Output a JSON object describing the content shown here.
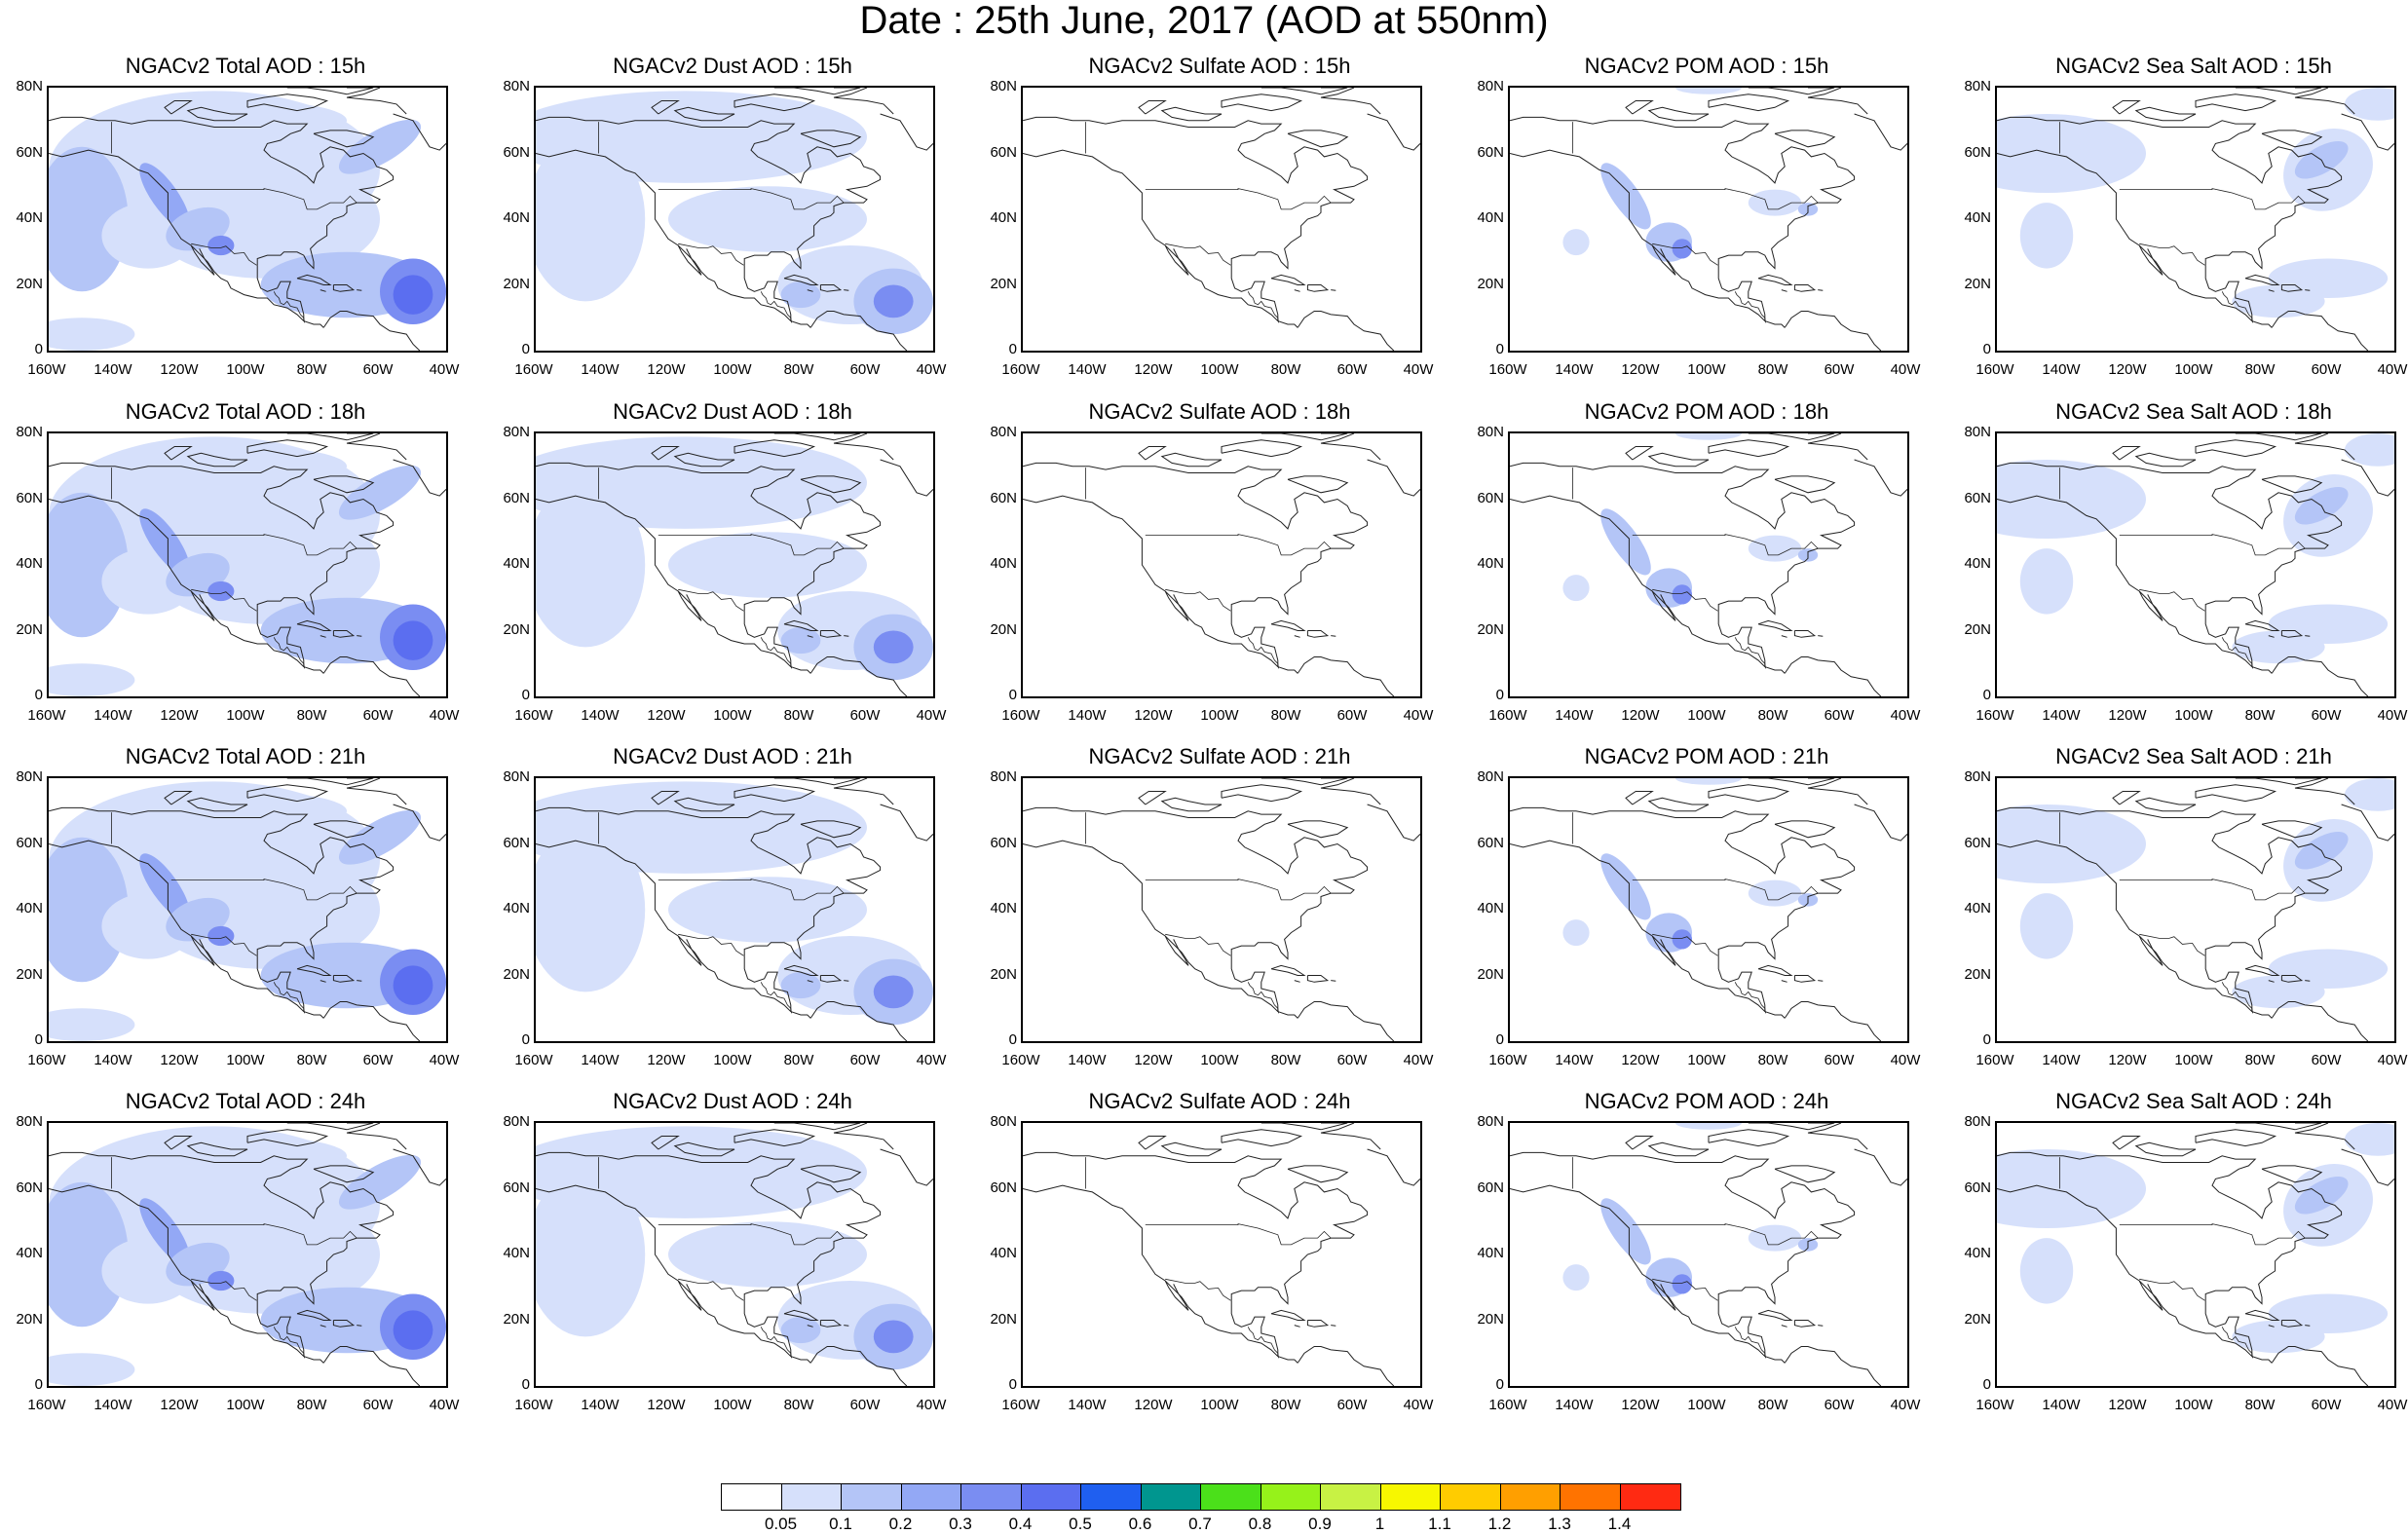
{
  "title": "Date : 25th June, 2017 (AOD at 550nm)",
  "y_ticks": [
    "80N",
    "60N",
    "40N",
    "20N",
    "0"
  ],
  "x_ticks": [
    "160W",
    "140W",
    "120W",
    "100W",
    "80W",
    "60W",
    "40W"
  ],
  "panels": [
    {
      "title": "NGACv2 Total AOD : 15h",
      "variable": "total",
      "hour": 15
    },
    {
      "title": "NGACv2 Dust AOD : 15h",
      "variable": "dust",
      "hour": 15
    },
    {
      "title": "NGACv2 Sulfate AOD : 15h",
      "variable": "sulfate",
      "hour": 15
    },
    {
      "title": "NGACv2 POM AOD : 15h",
      "variable": "pom",
      "hour": 15
    },
    {
      "title": "NGACv2 Sea Salt AOD : 15h",
      "variable": "seasalt",
      "hour": 15
    },
    {
      "title": "NGACv2 Total AOD : 18h",
      "variable": "total",
      "hour": 18
    },
    {
      "title": "NGACv2 Dust AOD : 18h",
      "variable": "dust",
      "hour": 18
    },
    {
      "title": "NGACv2 Sulfate AOD : 18h",
      "variable": "sulfate",
      "hour": 18
    },
    {
      "title": "NGACv2 POM AOD : 18h",
      "variable": "pom",
      "hour": 18
    },
    {
      "title": "NGACv2 Sea Salt AOD : 18h",
      "variable": "seasalt",
      "hour": 18
    },
    {
      "title": "NGACv2 Total AOD : 21h",
      "variable": "total",
      "hour": 21
    },
    {
      "title": "NGACv2 Dust AOD : 21h",
      "variable": "dust",
      "hour": 21
    },
    {
      "title": "NGACv2 Sulfate AOD : 21h",
      "variable": "sulfate",
      "hour": 21
    },
    {
      "title": "NGACv2 POM AOD : 21h",
      "variable": "pom",
      "hour": 21
    },
    {
      "title": "NGACv2 Sea Salt AOD : 21h",
      "variable": "seasalt",
      "hour": 21
    },
    {
      "title": "NGACv2 Total AOD : 24h",
      "variable": "total",
      "hour": 24
    },
    {
      "title": "NGACv2 Dust AOD : 24h",
      "variable": "dust",
      "hour": 24
    },
    {
      "title": "NGACv2 Sulfate AOD : 24h",
      "variable": "sulfate",
      "hour": 24
    },
    {
      "title": "NGACv2 POM AOD : 24h",
      "variable": "pom",
      "hour": 24
    },
    {
      "title": "NGACv2 Sea Salt  AOD : 24h",
      "variable": "seasalt",
      "hour": 24
    }
  ],
  "colorbar": {
    "colors": [
      "#ffffff",
      "#d6e0fb",
      "#b4c5f7",
      "#93a8f5",
      "#7a8df2",
      "#5b6ef0",
      "#1f5ff0",
      "#00968f",
      "#4be01a",
      "#96f21a",
      "#c8f244",
      "#f7f700",
      "#ffcc00",
      "#ff9f00",
      "#ff7300",
      "#ff2a12"
    ],
    "labels": [
      "0.05",
      "0.1",
      "0.2",
      "0.3",
      "0.4",
      "0.5",
      "0.6",
      "0.7",
      "0.8",
      "0.9",
      "1",
      "1.1",
      "1.2",
      "1.3",
      "1.4"
    ]
  }
}
